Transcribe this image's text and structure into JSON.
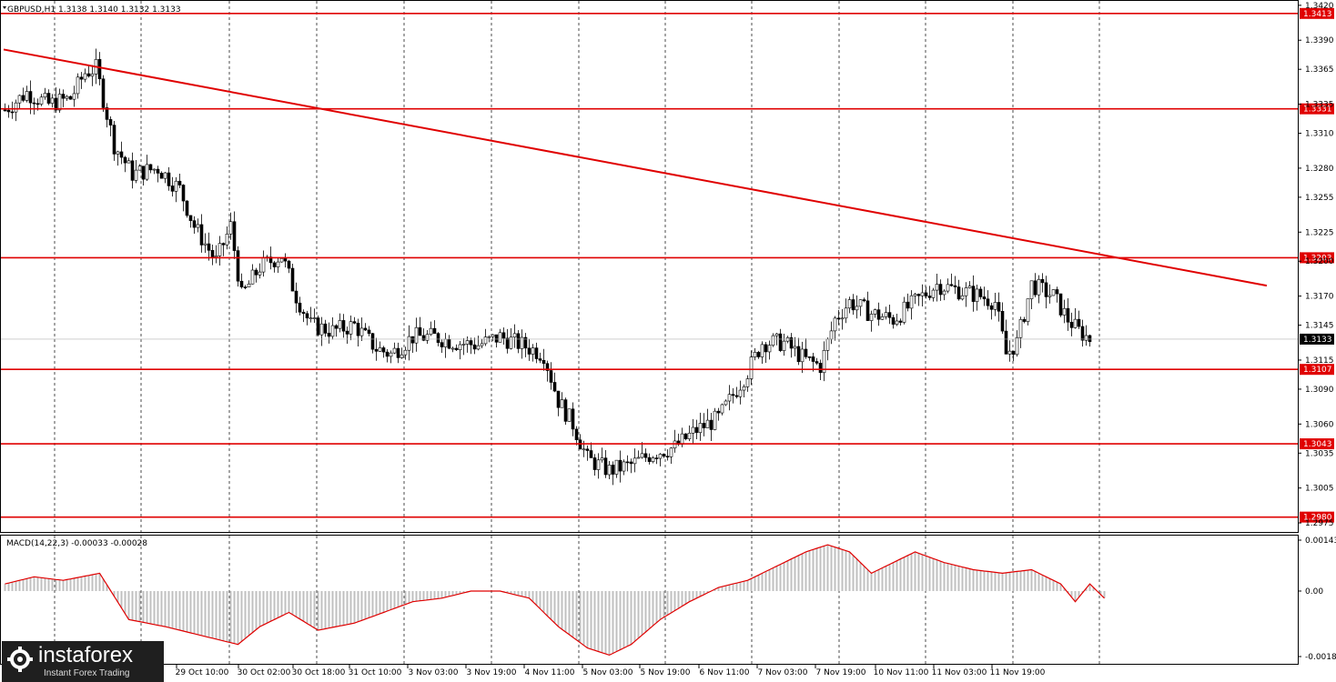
{
  "chart_data": {
    "type": "candlestick",
    "symbol_info": "GBPUSD,H1  1.3138 1.3140 1.3132 1.3133",
    "price_axis_labels": [
      "1.3420",
      "1.3390",
      "1.3365",
      "1.3335",
      "1.3310",
      "1.3280",
      "1.3255",
      "1.3225",
      "1.3200",
      "1.3170",
      "1.3145",
      "1.3115",
      "1.3090",
      "1.3060",
      "1.3035",
      "1.3005",
      "1.2975"
    ],
    "price_range": [
      1.2968,
      1.3423
    ],
    "x_labels": [
      "29 Oct 10:00",
      "30 Oct 02:00",
      "30 Oct 18:00",
      "31 Oct 10:00",
      "3 Nov 03:00",
      "3 Nov 19:00",
      "4 Nov 11:00",
      "5 Nov 03:00",
      "5 Nov 19:00",
      "6 Nov 11:00",
      "7 Nov 03:00",
      "7 Nov 19:00",
      "10 Nov 11:00",
      "11 Nov 03:00",
      "11 Nov 19:00"
    ],
    "levels": [
      {
        "label": "1.3413",
        "value": 1.3413
      },
      {
        "label": "1.3331",
        "value": 1.3331
      },
      {
        "label": "1.3203",
        "value": 1.3203
      },
      {
        "label": "1.3107",
        "value": 1.3107
      },
      {
        "label": "1.3043",
        "value": 1.3043
      },
      {
        "label": "1.2980",
        "value": 1.298
      }
    ],
    "current_price": {
      "label": "1.3133",
      "value": 1.3133
    },
    "trendline": {
      "start_bar": 0,
      "start_value": 1.3382,
      "end_bar": 347,
      "end_value": 1.3179
    },
    "close_path": [
      [
        0,
        1.333
      ],
      [
        6,
        1.3345
      ],
      [
        12,
        1.3335
      ],
      [
        18,
        1.334
      ],
      [
        22,
        1.3362
      ],
      [
        25,
        1.3366
      ],
      [
        30,
        1.33
      ],
      [
        35,
        1.3275
      ],
      [
        42,
        1.328
      ],
      [
        48,
        1.3262
      ],
      [
        52,
        1.323
      ],
      [
        58,
        1.32
      ],
      [
        62,
        1.323
      ],
      [
        65,
        1.317
      ],
      [
        70,
        1.3195
      ],
      [
        76,
        1.3205
      ],
      [
        80,
        1.317
      ],
      [
        84,
        1.3145
      ],
      [
        90,
        1.314
      ],
      [
        96,
        1.3145
      ],
      [
        102,
        1.3125
      ],
      [
        106,
        1.312
      ],
      [
        112,
        1.3135
      ],
      [
        118,
        1.3135
      ],
      [
        124,
        1.313
      ],
      [
        130,
        1.3128
      ],
      [
        136,
        1.3135
      ],
      [
        142,
        1.3128
      ],
      [
        148,
        1.312
      ],
      [
        152,
        1.308
      ],
      [
        156,
        1.306
      ],
      [
        160,
        1.303
      ],
      [
        166,
        1.302
      ],
      [
        172,
        1.3025
      ],
      [
        178,
        1.3035
      ],
      [
        184,
        1.304
      ],
      [
        190,
        1.3055
      ],
      [
        196,
        1.3065
      ],
      [
        200,
        1.3085
      ],
      [
        204,
        1.3105
      ],
      [
        208,
        1.313
      ],
      [
        214,
        1.313
      ],
      [
        220,
        1.3115
      ],
      [
        224,
        1.311
      ],
      [
        228,
        1.315
      ],
      [
        232,
        1.3165
      ],
      [
        238,
        1.3155
      ],
      [
        244,
        1.315
      ],
      [
        250,
        1.3165
      ],
      [
        256,
        1.318
      ],
      [
        262,
        1.3175
      ],
      [
        268,
        1.317
      ],
      [
        272,
        1.3165
      ],
      [
        275,
        1.312
      ],
      [
        278,
        1.313
      ],
      [
        282,
        1.318
      ],
      [
        288,
        1.317
      ],
      [
        292,
        1.315
      ],
      [
        295,
        1.314
      ],
      [
        298,
        1.3133
      ]
    ],
    "macd": {
      "label": "MACD(14,22,3) -0.00033 -0.00028",
      "axis_labels": [
        "0.00143",
        "0.00",
        "-0.00184"
      ],
      "range": [
        -0.00184,
        0.00143
      ],
      "path": [
        [
          0,
          0.0002
        ],
        [
          8,
          0.0004
        ],
        [
          16,
          0.0003
        ],
        [
          26,
          0.0005
        ],
        [
          34,
          -0.0008
        ],
        [
          44,
          -0.001
        ],
        [
          56,
          -0.0013
        ],
        [
          64,
          -0.0015
        ],
        [
          70,
          -0.001
        ],
        [
          78,
          -0.0006
        ],
        [
          86,
          -0.0011
        ],
        [
          96,
          -0.0009
        ],
        [
          104,
          -0.0006
        ],
        [
          112,
          -0.0003
        ],
        [
          120,
          -0.0002
        ],
        [
          128,
          0.0
        ],
        [
          136,
          0.0
        ],
        [
          144,
          -0.0002
        ],
        [
          152,
          -0.001
        ],
        [
          160,
          -0.0016
        ],
        [
          166,
          -0.0018
        ],
        [
          172,
          -0.0015
        ],
        [
          180,
          -0.0008
        ],
        [
          188,
          -0.0003
        ],
        [
          196,
          0.0001
        ],
        [
          204,
          0.0003
        ],
        [
          212,
          0.0007
        ],
        [
          220,
          0.0011
        ],
        [
          226,
          0.0013
        ],
        [
          232,
          0.0011
        ],
        [
          238,
          0.0005
        ],
        [
          244,
          0.0008
        ],
        [
          250,
          0.0011
        ],
        [
          258,
          0.0008
        ],
        [
          266,
          0.0006
        ],
        [
          274,
          0.0005
        ],
        [
          282,
          0.0006
        ],
        [
          290,
          0.0002
        ],
        [
          294,
          -0.0003
        ],
        [
          298,
          0.0002
        ],
        [
          302,
          -0.0002
        ]
      ]
    }
  },
  "watermark": {
    "name": "instaforex",
    "tagline": "Instant Forex Trading"
  },
  "colors": {
    "level_line": "#e00000",
    "trendline": "#e00000",
    "macd_signal": "#e00000",
    "macd_hist": "#c0c0c0",
    "candle_bull": "#ffffff",
    "candle_bear": "#000000",
    "grid": "#000000",
    "price_tag": "#000000",
    "level_tag": "#e00000"
  }
}
